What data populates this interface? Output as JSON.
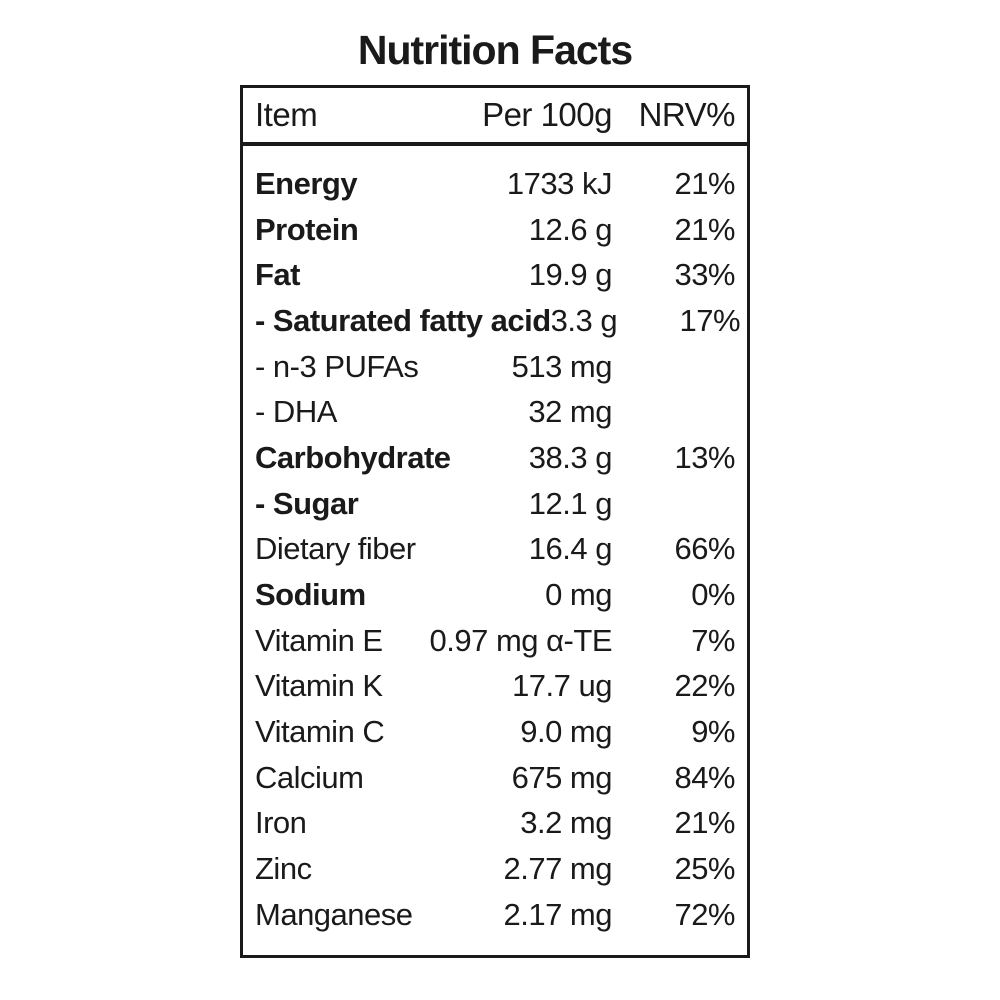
{
  "title": "Nutrition Facts",
  "table": {
    "headers": {
      "item": "Item",
      "per": "Per 100g",
      "nrv": "NRV%"
    },
    "rows": [
      {
        "item": "Energy",
        "value": "1733 kJ",
        "nrv": "21%",
        "bold": true
      },
      {
        "item": "Protein",
        "value": "12.6 g",
        "nrv": "21%",
        "bold": true
      },
      {
        "item": "Fat",
        "value": "19.9 g",
        "nrv": "33%",
        "bold": true
      },
      {
        "item": "- Saturated fatty acid",
        "value": "3.3 g",
        "nrv": "17%",
        "bold": true
      },
      {
        "item": "- n-3 PUFAs",
        "value": "513 mg",
        "nrv": "",
        "bold": false
      },
      {
        "item": "- DHA",
        "value": "32 mg",
        "nrv": "",
        "bold": false
      },
      {
        "item": "Carbohydrate",
        "value": "38.3 g",
        "nrv": "13%",
        "bold": true
      },
      {
        "item": "- Sugar",
        "value": "12.1 g",
        "nrv": "",
        "bold": true
      },
      {
        "item": "Dietary fiber",
        "value": "16.4 g",
        "nrv": "66%",
        "bold": false
      },
      {
        "item": "Sodium",
        "value": "0 mg",
        "nrv": "0%",
        "bold": true
      },
      {
        "item": "Vitamin E",
        "value": "0.97 mg α-TE",
        "nrv": "7%",
        "bold": false
      },
      {
        "item": "Vitamin K",
        "value": "17.7 ug",
        "nrv": "22%",
        "bold": false
      },
      {
        "item": "Vitamin C",
        "value": "9.0 mg",
        "nrv": "9%",
        "bold": false
      },
      {
        "item": "Calcium",
        "value": "675 mg",
        "nrv": "84%",
        "bold": false
      },
      {
        "item": "Iron",
        "value": "3.2 mg",
        "nrv": "21%",
        "bold": false
      },
      {
        "item": "Zinc",
        "value": "2.77 mg",
        "nrv": "25%",
        "bold": false
      },
      {
        "item": "Manganese",
        "value": "2.17 mg",
        "nrv": "72%",
        "bold": false
      }
    ]
  },
  "colors": {
    "text": "#1a1a1a",
    "border": "#1a1a1a",
    "background": "#ffffff"
  }
}
